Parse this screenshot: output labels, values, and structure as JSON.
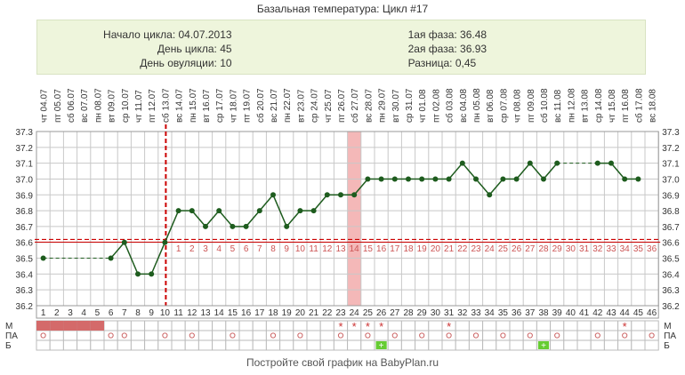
{
  "title": "Базальная температура: Цикл #17",
  "info": {
    "left": [
      "Начало цикла: 04.07.2013",
      "День цикла: 45",
      "День овуляции: 10"
    ],
    "right": [
      "1ая фаза: 36.48",
      "2ая фаза: 36.93",
      "Разница: 0,45"
    ]
  },
  "footer": "Постройте свой график на BabyPlan.ru",
  "row_labels": [
    "М",
    "ПА",
    "Б"
  ],
  "colors": {
    "line": "#1e5c1e",
    "grid": "#c8c8c8",
    "coverline": "#cc0000",
    "ovulation": "#cc0000",
    "highlight": "#f4b8b8",
    "menses": "#d46a6a",
    "sex_mark": "#cc3333",
    "test_plus": "#66cc33"
  },
  "chart_data": {
    "type": "line",
    "title": "",
    "xlabel": "",
    "ylabel": "",
    "ylim": [
      36.2,
      37.3
    ],
    "yticks": [
      "36.2",
      "36.3",
      "36.4",
      "36.5",
      "36.6",
      "36.7",
      "36.8",
      "36.9",
      "37.0",
      "37.1",
      "37.2",
      "37.3"
    ],
    "cycle_days": [
      1,
      2,
      3,
      4,
      5,
      6,
      7,
      8,
      9,
      10,
      11,
      12,
      13,
      14,
      15,
      16,
      17,
      18,
      19,
      20,
      21,
      22,
      23,
      24,
      25,
      26,
      27,
      28,
      29,
      30,
      31,
      32,
      33,
      34,
      35,
      36,
      37,
      38,
      39,
      40,
      41,
      42,
      43,
      44,
      45,
      46
    ],
    "dates": [
      "04.07",
      "05.07",
      "06.07",
      "07.07",
      "08.07",
      "09.07",
      "10.07",
      "11.07",
      "12.07",
      "13.07",
      "14.07",
      "15.07",
      "16.07",
      "17.07",
      "18.07",
      "19.07",
      "20.07",
      "21.07",
      "22.07",
      "23.07",
      "24.07",
      "25.07",
      "26.07",
      "27.07",
      "28.07",
      "29.07",
      "30.07",
      "31.07",
      "01.08",
      "02.08",
      "03.08",
      "04.08",
      "05.08",
      "06.08",
      "07.08",
      "08.08",
      "09.08",
      "10.08",
      "11.08",
      "12.08",
      "13.08",
      "14.08",
      "15.08",
      "16.08",
      "17.08",
      "18.08"
    ],
    "weekdays": [
      "чт",
      "пт",
      "сб",
      "вс",
      "пн",
      "вт",
      "ср",
      "чт",
      "пт",
      "сб",
      "вс",
      "пн",
      "вт",
      "ср",
      "чт",
      "пт",
      "сб",
      "вс",
      "пн",
      "вт",
      "ср",
      "чт",
      "пт",
      "сб",
      "вс",
      "пн",
      "вт",
      "ср",
      "чт",
      "пт",
      "сб",
      "вс",
      "пн",
      "вт",
      "ср",
      "чт",
      "пт",
      "сб",
      "вс",
      "пн",
      "вт",
      "ср",
      "чт",
      "пт",
      "сб",
      "вс"
    ],
    "temperature": [
      36.5,
      null,
      null,
      null,
      null,
      36.5,
      36.6,
      36.4,
      36.4,
      36.6,
      36.8,
      36.8,
      36.7,
      36.8,
      36.7,
      36.7,
      36.8,
      36.9,
      36.7,
      36.8,
      36.8,
      36.9,
      36.9,
      36.9,
      37.0,
      37.0,
      37.0,
      37.0,
      37.0,
      37.0,
      37.0,
      37.1,
      37.0,
      36.9,
      37.0,
      37.0,
      37.1,
      37.0,
      37.1,
      null,
      null,
      37.1,
      37.1,
      37.0,
      37.0,
      null
    ],
    "coverline": 36.61,
    "ovulation_day": 10,
    "highlight_day": 24,
    "post_ovulation_labels": [
      "1",
      "2",
      "3",
      "4",
      "5",
      "6",
      "7",
      "8",
      "9",
      "10",
      "11",
      "12",
      "13",
      "14",
      "15",
      "16",
      "17",
      "18",
      "19",
      "20",
      "21",
      "22",
      "23",
      "24",
      "25",
      "26",
      "27",
      "28",
      "29",
      "30",
      "31",
      "32",
      "33",
      "34",
      "35",
      "36"
    ],
    "menses_days": [
      1,
      2,
      3,
      4,
      5
    ],
    "m_star_days": [
      23,
      24,
      25,
      26,
      31,
      44
    ],
    "pa_days": [
      1,
      6,
      7,
      10,
      12,
      15,
      18,
      20,
      23,
      25,
      27,
      29,
      31,
      33,
      35,
      37,
      39,
      42,
      44,
      46
    ],
    "b_plus_days": [
      26,
      38
    ]
  }
}
